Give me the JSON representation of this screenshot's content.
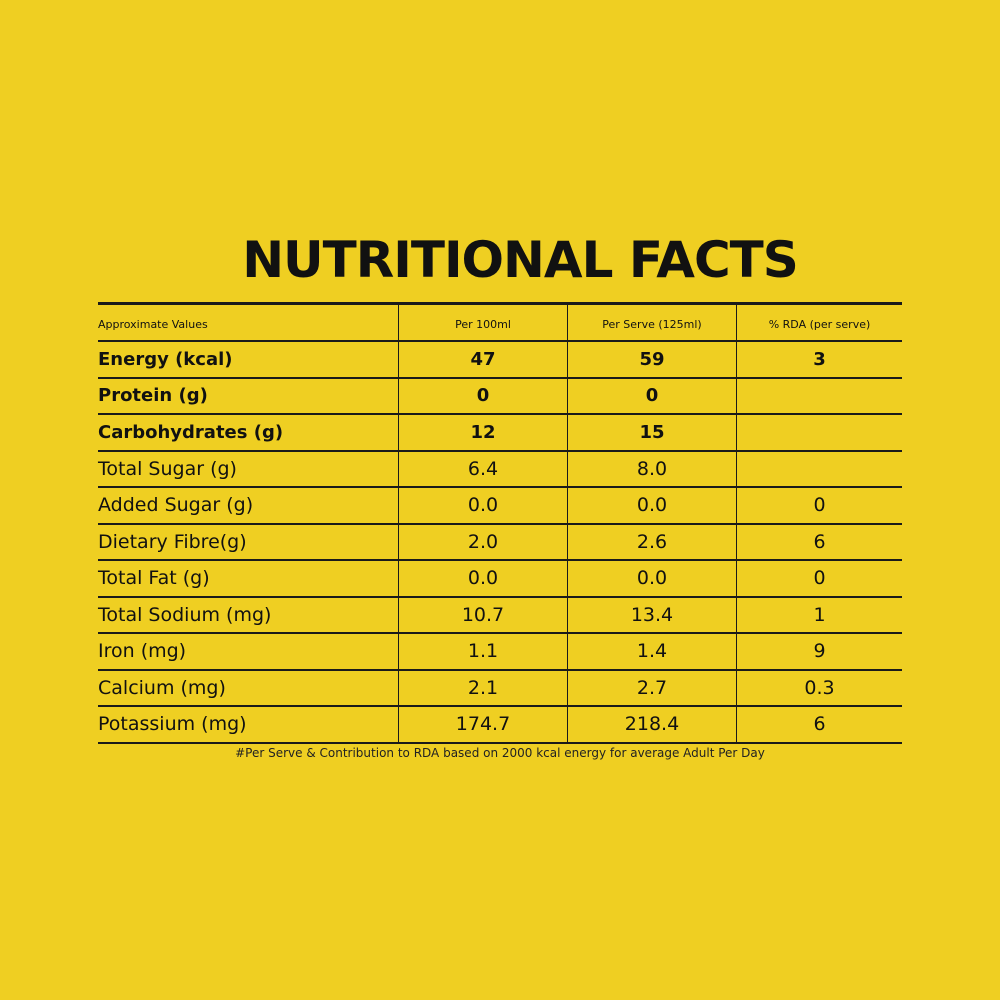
{
  "title": "NUTRITIONAL FACTS",
  "table": {
    "headers": [
      "Approximate Values",
      "Per 100ml",
      "Per Serve (125ml)",
      "% RDA (per serve)"
    ],
    "rows": [
      {
        "name": "Energy (kcal)",
        "per100": "47",
        "perServe": "59",
        "rda": "3",
        "bold": true
      },
      {
        "name": "Protein (g)",
        "per100": "0",
        "perServe": "0",
        "rda": "",
        "bold": true
      },
      {
        "name": "Carbohydrates (g)",
        "per100": "12",
        "perServe": "15",
        "rda": "",
        "bold": true
      },
      {
        "name": "Total Sugar (g)",
        "per100": "6.4",
        "perServe": "8.0",
        "rda": "",
        "bold": false
      },
      {
        "name": "Added Sugar (g)",
        "per100": "0.0",
        "perServe": "0.0",
        "rda": "0",
        "bold": false
      },
      {
        "name": "Dietary Fibre(g)",
        "per100": "2.0",
        "perServe": "2.6",
        "rda": "6",
        "bold": false
      },
      {
        "name": "Total Fat (g)",
        "per100": "0.0",
        "perServe": "0.0",
        "rda": "0",
        "bold": false
      },
      {
        "name": "Total Sodium (mg)",
        "per100": "10.7",
        "perServe": "13.4",
        "rda": "1",
        "bold": false
      },
      {
        "name": "Iron (mg)",
        "per100": "1.1",
        "perServe": "1.4",
        "rda": "9",
        "bold": false
      },
      {
        "name": "Calcium (mg)",
        "per100": "2.1",
        "perServe": "2.7",
        "rda": "0.3",
        "bold": false
      },
      {
        "name": "Potassium (mg)",
        "per100": "174.7",
        "perServe": "218.4",
        "rda": "6",
        "bold": false
      }
    ]
  },
  "footnote": "#Per Serve & Contribution to RDA based on 2000 kcal energy for average Adult Per Day",
  "colors": {
    "background": "#EFCF22",
    "text": "#111111"
  }
}
